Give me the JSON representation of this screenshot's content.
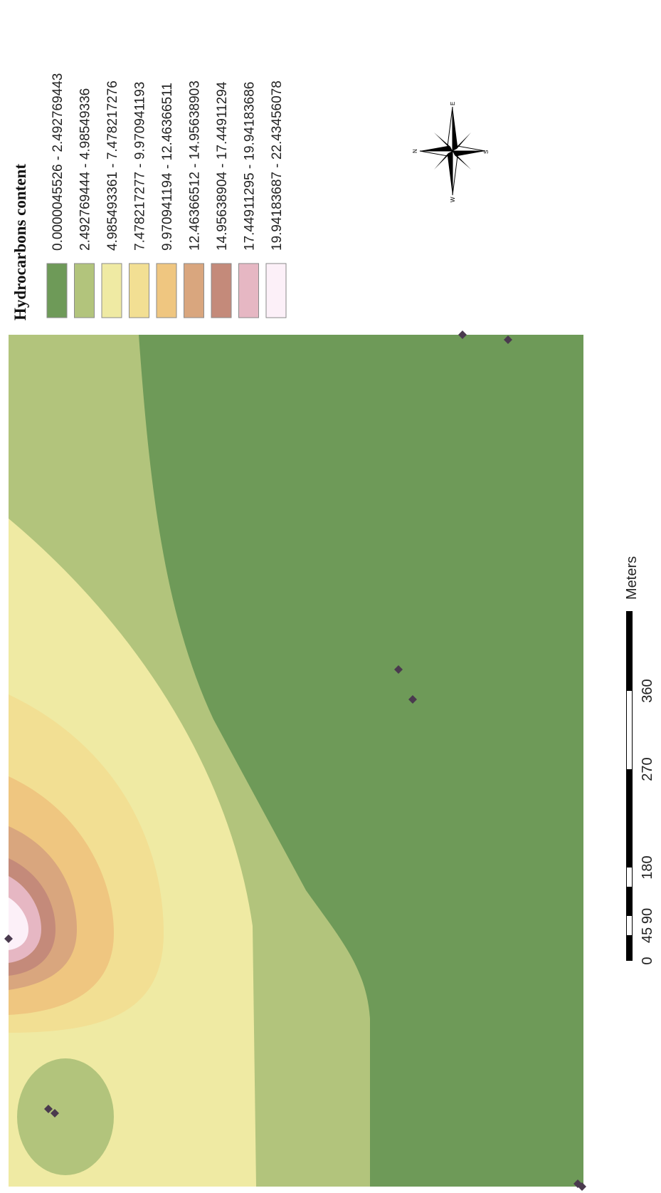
{
  "legend": {
    "title": "Hydrocarbons content",
    "classes": [
      {
        "label": "0.0000045526 - 2.492769443",
        "color": "#6e9a58"
      },
      {
        "label": "2.492769444 - 4.98549336",
        "color": "#b2c47c"
      },
      {
        "label": "4.985493361 - 7.478217276",
        "color": "#efeaa3"
      },
      {
        "label": "7.478217277 - 9.970941193",
        "color": "#f2df93"
      },
      {
        "label": "9.970941194 - 12.46366511",
        "color": "#efc680"
      },
      {
        "label": "12.46366512 - 14.95638903",
        "color": "#d9a67e"
      },
      {
        "label": "14.95638904 - 17.44911294",
        "color": "#c48a7a"
      },
      {
        "label": "17.44911295 - 19.94183686",
        "color": "#e6b7c3"
      },
      {
        "label": "19.94183687 - 22.43456078",
        "color": "#fcf0f8"
      }
    ]
  },
  "north_arrow": {
    "letters": [
      "E",
      "N",
      "S",
      "W"
    ]
  },
  "scale_bar": {
    "unit": "Meters",
    "ticks": [
      "0",
      "45",
      "90",
      "180",
      "270",
      "360"
    ]
  },
  "sample_points_color": "#4a3a4e"
}
